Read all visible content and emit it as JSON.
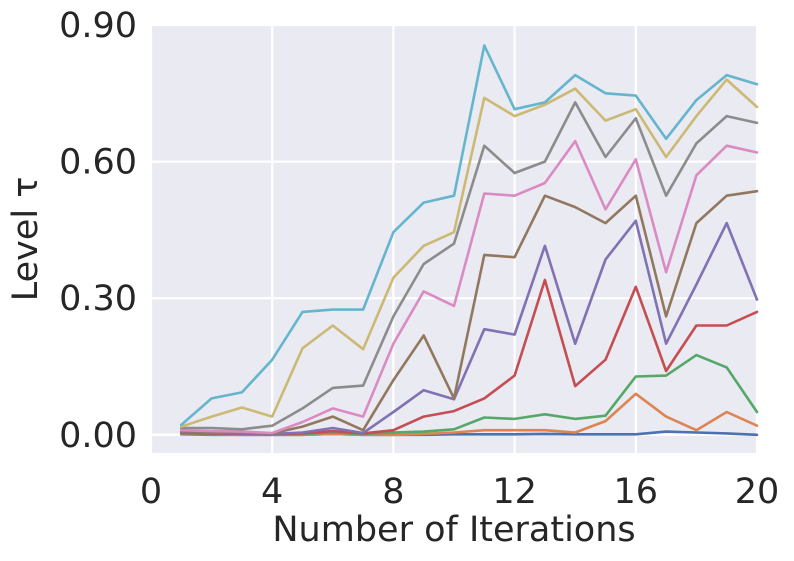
{
  "chart_data": {
    "type": "line",
    "xlabel": "Number of Iterations",
    "ylabel": "Level τ",
    "xlim": [
      0,
      20
    ],
    "ylim": [
      -0.04,
      0.9
    ],
    "xticks": [
      0,
      4,
      8,
      12,
      16,
      20
    ],
    "yticks": [
      0.0,
      0.3,
      0.6,
      0.9
    ],
    "xtick_labels": [
      "0",
      "4",
      "8",
      "12",
      "16",
      "20"
    ],
    "ytick_labels": [
      "0.00",
      "0.30",
      "0.60",
      "0.90"
    ],
    "grid": true,
    "style": "seaborn-darkgrid",
    "background_color": "#EAEAF2",
    "x": [
      1,
      2,
      3,
      4,
      5,
      6,
      7,
      8,
      9,
      10,
      11,
      12,
      13,
      14,
      15,
      16,
      17,
      18,
      19,
      20
    ],
    "series": [
      {
        "color": "#4C72B0",
        "values": [
          0.001,
          0.0,
          0.0,
          0.0,
          0.0,
          0.002,
          0.0,
          0.0,
          0.0,
          0.001,
          0.001,
          0.001,
          0.002,
          0.001,
          0.001,
          0.001,
          0.007,
          0.005,
          0.003,
          0.0
        ]
      },
      {
        "color": "#DD8452",
        "values": [
          0.002,
          0.001,
          0.0,
          0.0,
          0.0,
          0.002,
          0.0,
          0.0,
          0.002,
          0.005,
          0.01,
          0.01,
          0.01,
          0.005,
          0.03,
          0.09,
          0.04,
          0.01,
          0.05,
          0.02
        ]
      },
      {
        "color": "#55A868",
        "values": [
          0.003,
          0.002,
          0.002,
          0.001,
          0.002,
          0.005,
          0.002,
          0.005,
          0.007,
          0.012,
          0.038,
          0.035,
          0.045,
          0.035,
          0.042,
          0.128,
          0.13,
          0.175,
          0.148,
          0.05
        ]
      },
      {
        "color": "#C44E52",
        "values": [
          0.004,
          0.003,
          0.002,
          0.001,
          0.003,
          0.008,
          0.003,
          0.01,
          0.04,
          0.052,
          0.08,
          0.13,
          0.34,
          0.107,
          0.165,
          0.325,
          0.14,
          0.24,
          0.24,
          0.27
        ]
      },
      {
        "color": "#8172B3",
        "values": [
          0.006,
          0.004,
          0.003,
          0.002,
          0.005,
          0.015,
          0.004,
          0.05,
          0.098,
          0.078,
          0.232,
          0.22,
          0.415,
          0.2,
          0.385,
          0.47,
          0.2,
          0.33,
          0.465,
          0.297
        ]
      },
      {
        "color": "#937860",
        "values": [
          0.008,
          0.006,
          0.005,
          0.003,
          0.018,
          0.04,
          0.01,
          0.12,
          0.218,
          0.08,
          0.395,
          0.39,
          0.525,
          0.5,
          0.465,
          0.525,
          0.26,
          0.465,
          0.525,
          0.535
        ]
      },
      {
        "color": "#DA8BC3",
        "values": [
          0.01,
          0.008,
          0.007,
          0.004,
          0.028,
          0.058,
          0.04,
          0.2,
          0.315,
          0.283,
          0.53,
          0.525,
          0.553,
          0.645,
          0.495,
          0.605,
          0.357,
          0.57,
          0.635,
          0.62
        ]
      },
      {
        "color": "#8C8C8C",
        "values": [
          0.015,
          0.015,
          0.012,
          0.02,
          0.058,
          0.103,
          0.108,
          0.26,
          0.375,
          0.42,
          0.635,
          0.575,
          0.6,
          0.73,
          0.61,
          0.695,
          0.525,
          0.64,
          0.7,
          0.685
        ]
      },
      {
        "color": "#CCB974",
        "values": [
          0.018,
          0.04,
          0.06,
          0.04,
          0.19,
          0.24,
          0.188,
          0.345,
          0.415,
          0.445,
          0.74,
          0.7,
          0.725,
          0.76,
          0.69,
          0.715,
          0.61,
          0.7,
          0.78,
          0.72
        ]
      },
      {
        "color": "#64B5CD",
        "values": [
          0.022,
          0.08,
          0.093,
          0.165,
          0.27,
          0.275,
          0.275,
          0.445,
          0.51,
          0.525,
          0.855,
          0.715,
          0.73,
          0.79,
          0.75,
          0.745,
          0.65,
          0.735,
          0.79,
          0.77
        ]
      }
    ]
  }
}
